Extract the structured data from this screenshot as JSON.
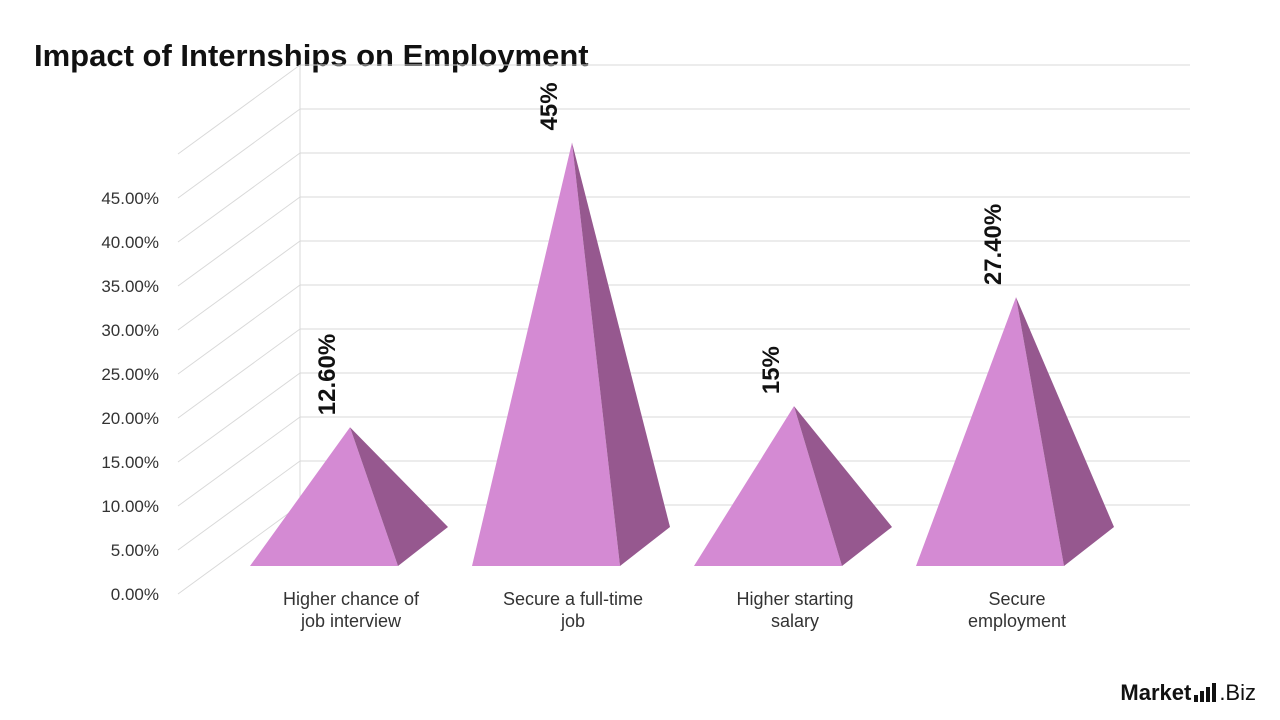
{
  "chart_data": {
    "type": "bar",
    "title": "Impact of Internships on Employment",
    "categories": [
      "Higher chance of job interview",
      "Secure a full-time job",
      "Higher starting salary",
      "Secure employment"
    ],
    "category_lines": [
      [
        "Higher chance of",
        "job interview"
      ],
      [
        "Secure a full-time",
        "job"
      ],
      [
        "Higher starting",
        "salary"
      ],
      [
        "Secure",
        "employment"
      ]
    ],
    "values": [
      12.6,
      45,
      15,
      27.4
    ],
    "data_labels": [
      "12.60%",
      "45%",
      "15%",
      "27.40%"
    ],
    "y_ticks": [
      "0.00%",
      "5.00%",
      "10.00%",
      "15.00%",
      "20.00%",
      "25.00%",
      "30.00%",
      "35.00%",
      "40.00%",
      "45.00%"
    ],
    "ylim": [
      0,
      50
    ],
    "grid": true,
    "legend": "none",
    "xlabel": "",
    "ylabel": "",
    "colors": {
      "front": "#d48ad3",
      "side": "#96588f",
      "grid": "#d9d9d9"
    }
  },
  "brand": {
    "strong": "Market",
    "rest": ".Biz"
  }
}
